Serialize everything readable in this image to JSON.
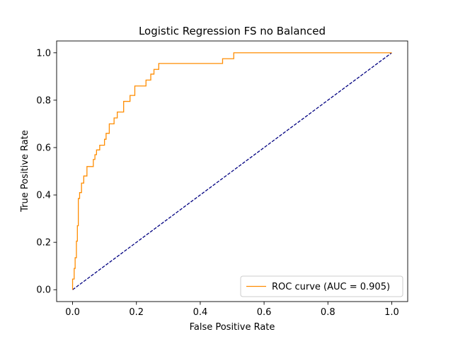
{
  "chart_data": {
    "type": "line",
    "title": "Logistic Regression FS no Balanced",
    "xlabel": "False Positive Rate",
    "ylabel": "True Positive Rate",
    "xlim": [
      -0.05,
      1.05
    ],
    "ylim": [
      -0.05,
      1.05
    ],
    "xticks": [
      0.0,
      0.2,
      0.4,
      0.6,
      0.8,
      1.0
    ],
    "yticks": [
      0.0,
      0.2,
      0.4,
      0.6,
      0.8,
      1.0
    ],
    "xtick_labels": [
      "0.0",
      "0.2",
      "0.4",
      "0.6",
      "0.8",
      "1.0"
    ],
    "ytick_labels": [
      "0.0",
      "0.2",
      "0.4",
      "0.6",
      "0.8",
      "1.0"
    ],
    "grid": false,
    "legend_position": "lower-right",
    "series": [
      {
        "name": "ROC curve (AUC = 0.905)",
        "color": "#ff8c00",
        "style": "solid",
        "x": [
          0.0,
          0.0,
          0.005,
          0.005,
          0.008,
          0.008,
          0.012,
          0.012,
          0.015,
          0.015,
          0.018,
          0.018,
          0.022,
          0.022,
          0.028,
          0.028,
          0.035,
          0.035,
          0.045,
          0.045,
          0.05,
          0.05,
          0.065,
          0.065,
          0.07,
          0.07,
          0.075,
          0.075,
          0.085,
          0.085,
          0.1,
          0.1,
          0.105,
          0.105,
          0.115,
          0.115,
          0.13,
          0.13,
          0.14,
          0.14,
          0.16,
          0.16,
          0.18,
          0.18,
          0.195,
          0.195,
          0.23,
          0.23,
          0.245,
          0.245,
          0.255,
          0.255,
          0.27,
          0.27,
          0.47,
          0.47,
          0.505,
          0.505,
          1.0
        ],
        "y": [
          0.0,
          0.045,
          0.045,
          0.09,
          0.09,
          0.135,
          0.135,
          0.205,
          0.205,
          0.27,
          0.27,
          0.385,
          0.385,
          0.41,
          0.41,
          0.45,
          0.45,
          0.48,
          0.48,
          0.52,
          0.52,
          0.52,
          0.52,
          0.55,
          0.55,
          0.57,
          0.57,
          0.59,
          0.59,
          0.61,
          0.61,
          0.635,
          0.635,
          0.66,
          0.66,
          0.7,
          0.7,
          0.725,
          0.725,
          0.75,
          0.75,
          0.795,
          0.795,
          0.82,
          0.82,
          0.86,
          0.86,
          0.885,
          0.885,
          0.91,
          0.91,
          0.93,
          0.93,
          0.955,
          0.955,
          0.975,
          0.975,
          1.0,
          1.0
        ]
      },
      {
        "name": "",
        "color": "#000080",
        "style": "dashed",
        "x": [
          0.0,
          1.0
        ],
        "y": [
          0.0,
          1.0
        ]
      }
    ]
  }
}
